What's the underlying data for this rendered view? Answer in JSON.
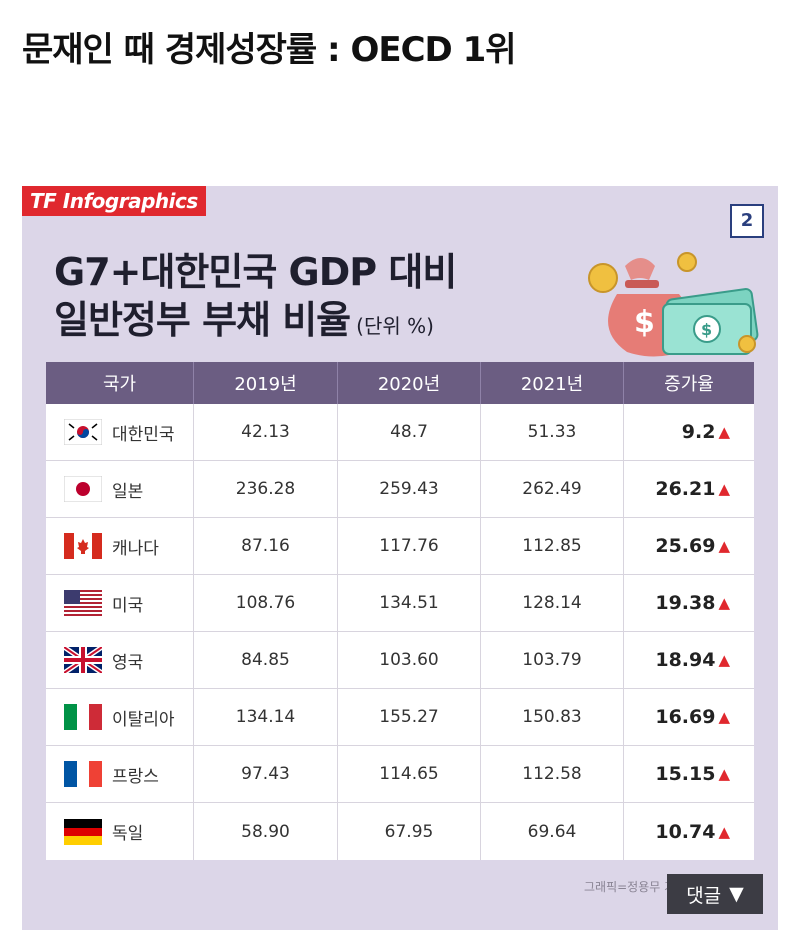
{
  "post": {
    "title": "문재인 때 경제성장률 : OECD 1위"
  },
  "infographic": {
    "brand": "TF Infographics",
    "page_number": "2",
    "headline_line1": "G7+대한민국 GDP 대비",
    "headline_line2": "일반정부 부채 비율",
    "unit": "(단위 %)",
    "credit": "그래픽=정용무 기자",
    "accent_color": "#e0282e",
    "header_color": "#6b5d82"
  },
  "table": {
    "headers": [
      "국가",
      "2019년",
      "2020년",
      "2021년",
      "증가율"
    ],
    "rows": [
      {
        "flag": "korea-flag-icon",
        "country": "대한민국",
        "y2019": "42.13",
        "y2020": "48.7",
        "y2021": "51.33",
        "growth": "9.2"
      },
      {
        "flag": "japan-flag-icon",
        "country": "일본",
        "y2019": "236.28",
        "y2020": "259.43",
        "y2021": "262.49",
        "growth": "26.21"
      },
      {
        "flag": "canada-flag-icon",
        "country": "캐나다",
        "y2019": "87.16",
        "y2020": "117.76",
        "y2021": "112.85",
        "growth": "25.69"
      },
      {
        "flag": "usa-flag-icon",
        "country": "미국",
        "y2019": "108.76",
        "y2020": "134.51",
        "y2021": "128.14",
        "growth": "19.38"
      },
      {
        "flag": "uk-flag-icon",
        "country": "영국",
        "y2019": "84.85",
        "y2020": "103.60",
        "y2021": "103.79",
        "growth": "18.94"
      },
      {
        "flag": "italy-flag-icon",
        "country": "이탈리아",
        "y2019": "134.14",
        "y2020": "155.27",
        "y2021": "150.83",
        "growth": "16.69"
      },
      {
        "flag": "france-flag-icon",
        "country": "프랑스",
        "y2019": "97.43",
        "y2020": "114.65",
        "y2021": "112.58",
        "growth": "15.15"
      },
      {
        "flag": "germany-flag-icon",
        "country": "독일",
        "y2019": "58.90",
        "y2020": "67.95",
        "y2021": "69.64",
        "growth": "10.74"
      }
    ]
  },
  "comment_button": {
    "label": "댓글",
    "icon": "triangle-down-icon"
  }
}
